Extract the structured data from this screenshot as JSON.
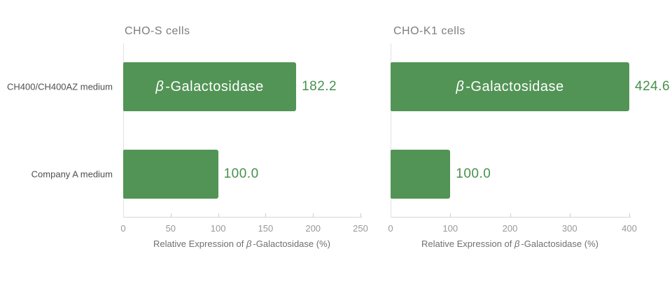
{
  "colors": {
    "bar": "#529455",
    "value_text": "#47914d",
    "bar_inner_text": "#ffffff",
    "title_text": "#7d7d7d",
    "category_text": "#4f4f4f",
    "tick_text": "#989898",
    "axis_label_text": "#707070",
    "axis_line": "#d6d6d6"
  },
  "chart_data": [
    {
      "type": "bar",
      "orientation": "horizontal",
      "title": "CHO-S cells",
      "categories": [
        "CH400/CH400AZ medium",
        "Company A medium"
      ],
      "values": [
        182.2,
        100.0
      ],
      "value_labels": [
        "182.2",
        "100.0"
      ],
      "bar_inner_labels": [
        "β-Galactosidase",
        ""
      ],
      "xlabel": "Relative Expression of β-Galactosidase (%)",
      "xlim": [
        0,
        250
      ],
      "xticks": [
        "0",
        "50",
        "100",
        "150",
        "200",
        "250"
      ],
      "show_category_labels": true,
      "grid": false,
      "legend_position": "none"
    },
    {
      "type": "bar",
      "orientation": "horizontal",
      "title": "CHO-K1 cells",
      "categories": [
        "CH400/CH400AZ medium",
        "Company A medium"
      ],
      "values": [
        424.6,
        100.0
      ],
      "value_labels": [
        "424.6",
        "100.0"
      ],
      "bar_inner_labels": [
        "β-Galactosidase",
        ""
      ],
      "xlabel": "Relative Expression of β-Galactosidase (%)",
      "xlim": [
        0,
        400
      ],
      "xticks": [
        "0",
        "100",
        "200",
        "300",
        "400"
      ],
      "show_category_labels": false,
      "grid": false,
      "legend_position": "none",
      "clip_bars_to_xlim": true
    }
  ]
}
